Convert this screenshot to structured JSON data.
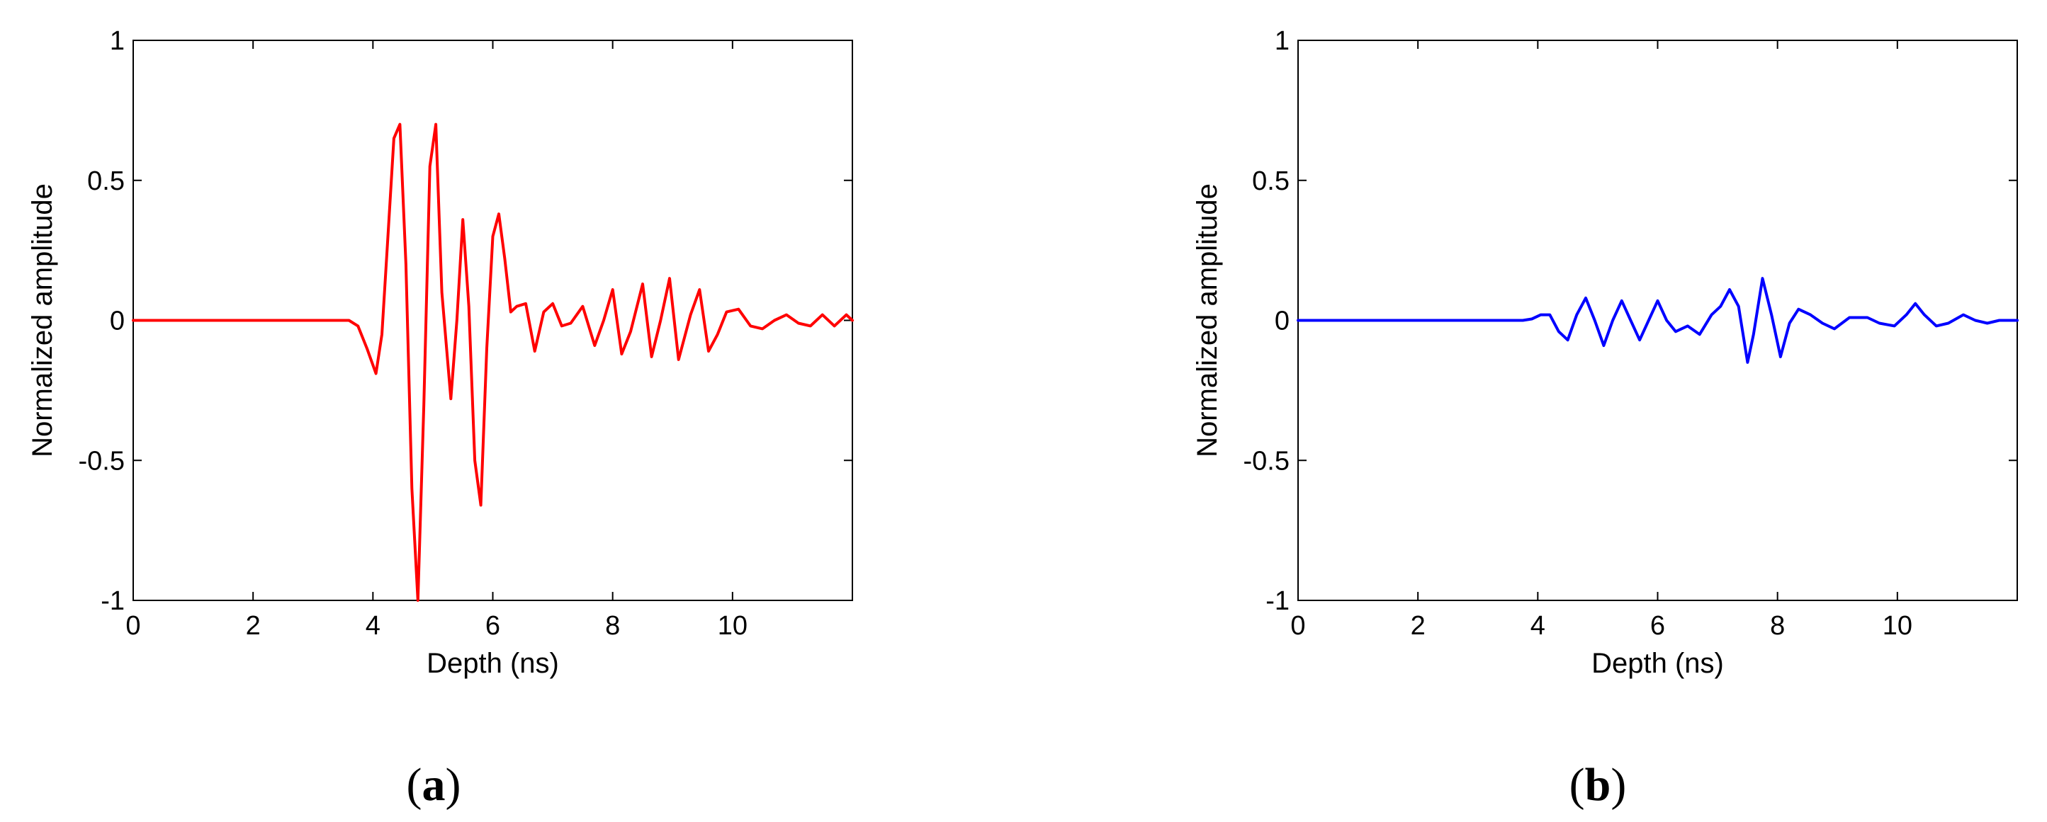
{
  "panels": [
    {
      "label_open": "(",
      "label_letter": "a",
      "label_close": ")"
    },
    {
      "label_open": "(",
      "label_letter": "b",
      "label_close": ")"
    }
  ],
  "chart_data": [
    {
      "type": "line",
      "xlabel": "Depth (ns)",
      "ylabel": "Normalized amplitude",
      "xlim": [
        0,
        12
      ],
      "ylim": [
        -1,
        1
      ],
      "xticks": [
        0,
        2,
        4,
        6,
        8,
        10
      ],
      "xtick_labels": [
        "0",
        "2",
        "4",
        "6",
        "8",
        "10"
      ],
      "yticks": [
        -1,
        -0.5,
        0,
        0.5,
        1
      ],
      "ytick_labels": [
        "-1",
        "-0.5",
        "0",
        "0.5",
        "1"
      ],
      "grid": false,
      "series": [
        {
          "color": "#ff0000",
          "x": [
            0,
            3.6,
            3.75,
            3.9,
            4.05,
            4.15,
            4.25,
            4.35,
            4.45,
            4.55,
            4.65,
            4.75,
            4.85,
            4.95,
            5.05,
            5.15,
            5.3,
            5.4,
            5.5,
            5.6,
            5.7,
            5.8,
            5.9,
            6.0,
            6.1,
            6.2,
            6.3,
            6.4,
            6.55,
            6.7,
            6.85,
            7.0,
            7.15,
            7.3,
            7.5,
            7.7,
            7.85,
            8.0,
            8.15,
            8.3,
            8.5,
            8.65,
            8.8,
            8.95,
            9.1,
            9.3,
            9.45,
            9.6,
            9.75,
            9.9,
            10.1,
            10.3,
            10.5,
            10.7,
            10.9,
            11.1,
            11.3,
            11.5,
            11.7,
            11.9,
            12.0
          ],
          "y": [
            0,
            0,
            -0.02,
            -0.1,
            -0.19,
            -0.05,
            0.3,
            0.65,
            0.7,
            0.2,
            -0.6,
            -1.0,
            -0.3,
            0.55,
            0.7,
            0.1,
            -0.28,
            0.0,
            0.36,
            0.05,
            -0.5,
            -0.66,
            -0.1,
            0.3,
            0.38,
            0.22,
            0.03,
            0.05,
            0.06,
            -0.11,
            0.03,
            0.06,
            -0.02,
            -0.01,
            0.05,
            -0.09,
            0.0,
            0.11,
            -0.12,
            -0.04,
            0.13,
            -0.13,
            0.0,
            0.15,
            -0.14,
            0.02,
            0.11,
            -0.11,
            -0.05,
            0.03,
            0.04,
            -0.02,
            -0.03,
            0.0,
            0.02,
            -0.01,
            -0.02,
            0.02,
            -0.02,
            0.02,
            0.0
          ]
        }
      ]
    },
    {
      "type": "line",
      "xlabel": "Depth (ns)",
      "ylabel": "Normalized amplitude",
      "xlim": [
        0,
        12
      ],
      "ylim": [
        -1,
        1
      ],
      "xticks": [
        0,
        2,
        4,
        6,
        8,
        10
      ],
      "xtick_labels": [
        "0",
        "2",
        "4",
        "6",
        "8",
        "10"
      ],
      "yticks": [
        -1,
        -0.5,
        0,
        0.5,
        1
      ],
      "ytick_labels": [
        "-1",
        "-0.5",
        "0",
        "0.5",
        "1"
      ],
      "grid": false,
      "series": [
        {
          "color": "#0000ff",
          "x": [
            0,
            3.75,
            3.9,
            4.05,
            4.2,
            4.35,
            4.5,
            4.65,
            4.8,
            4.95,
            5.1,
            5.25,
            5.4,
            5.55,
            5.7,
            5.85,
            6.0,
            6.15,
            6.3,
            6.5,
            6.7,
            6.9,
            7.05,
            7.2,
            7.35,
            7.5,
            7.6,
            7.75,
            7.9,
            8.05,
            8.2,
            8.35,
            8.55,
            8.75,
            8.95,
            9.2,
            9.5,
            9.7,
            9.95,
            10.15,
            10.3,
            10.45,
            10.65,
            10.85,
            11.1,
            11.3,
            11.5,
            11.7,
            12.0
          ],
          "y": [
            0,
            0,
            0.005,
            0.02,
            0.02,
            -0.04,
            -0.07,
            0.02,
            0.08,
            0.0,
            -0.09,
            0.0,
            0.07,
            0.0,
            -0.07,
            0.0,
            0.07,
            0.0,
            -0.04,
            -0.02,
            -0.05,
            0.02,
            0.05,
            0.11,
            0.05,
            -0.15,
            -0.05,
            0.15,
            0.02,
            -0.13,
            -0.01,
            0.04,
            0.02,
            -0.01,
            -0.03,
            0.01,
            0.01,
            -0.01,
            -0.02,
            0.02,
            0.06,
            0.02,
            -0.02,
            -0.01,
            0.02,
            0.0,
            -0.01,
            0.0,
            0.0
          ]
        }
      ]
    }
  ]
}
